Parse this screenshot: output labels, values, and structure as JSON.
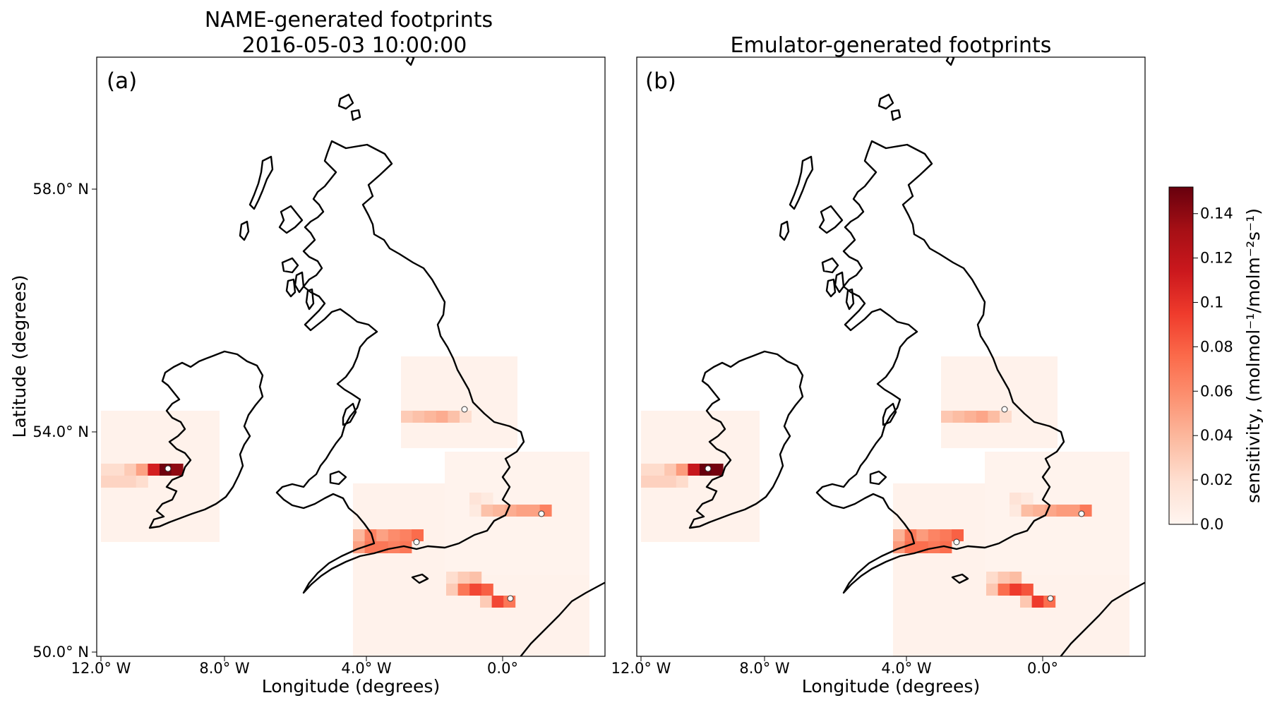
{
  "panels": [
    {
      "label": "(a)",
      "title_lines": [
        "NAME-generated footprints",
        "2016-05-03 10:00:00"
      ],
      "xlabel": "Longitude (degrees)",
      "ylabel": "Latitude (degrees)"
    },
    {
      "label": "(b)",
      "title_lines": [
        "Emulator-generated footprints"
      ],
      "xlabel": "Longitude (degrees)",
      "ylabel": ""
    }
  ],
  "x_ticks": [
    "12.0° W",
    "8.0° W",
    "4.0° W",
    "0.0°"
  ],
  "y_ticks": [
    "58.0° N",
    "54.0° N",
    "50.0° N"
  ],
  "colorbar": {
    "label": "sensitivity, (molmol⁻¹/molm⁻²s⁻¹)",
    "ticks": [
      "0.0",
      "0.02",
      "0.04",
      "0.06",
      "0.08",
      "0.1",
      "0.12",
      "0.14"
    ],
    "tick_values": [
      0,
      0.02,
      0.04,
      0.06,
      0.08,
      0.1,
      0.12,
      0.14
    ],
    "vmin": 0,
    "vmax": 0.152,
    "colormap": "Reds",
    "colors": [
      "#fff5f0",
      "#fee0d2",
      "#fcbba1",
      "#fc9272",
      "#fb6a4a",
      "#ef3b2c",
      "#cb181d",
      "#a50f15",
      "#67000d"
    ]
  },
  "colors": {
    "coastline": "#000000",
    "site_marker": "#ffffff"
  }
}
